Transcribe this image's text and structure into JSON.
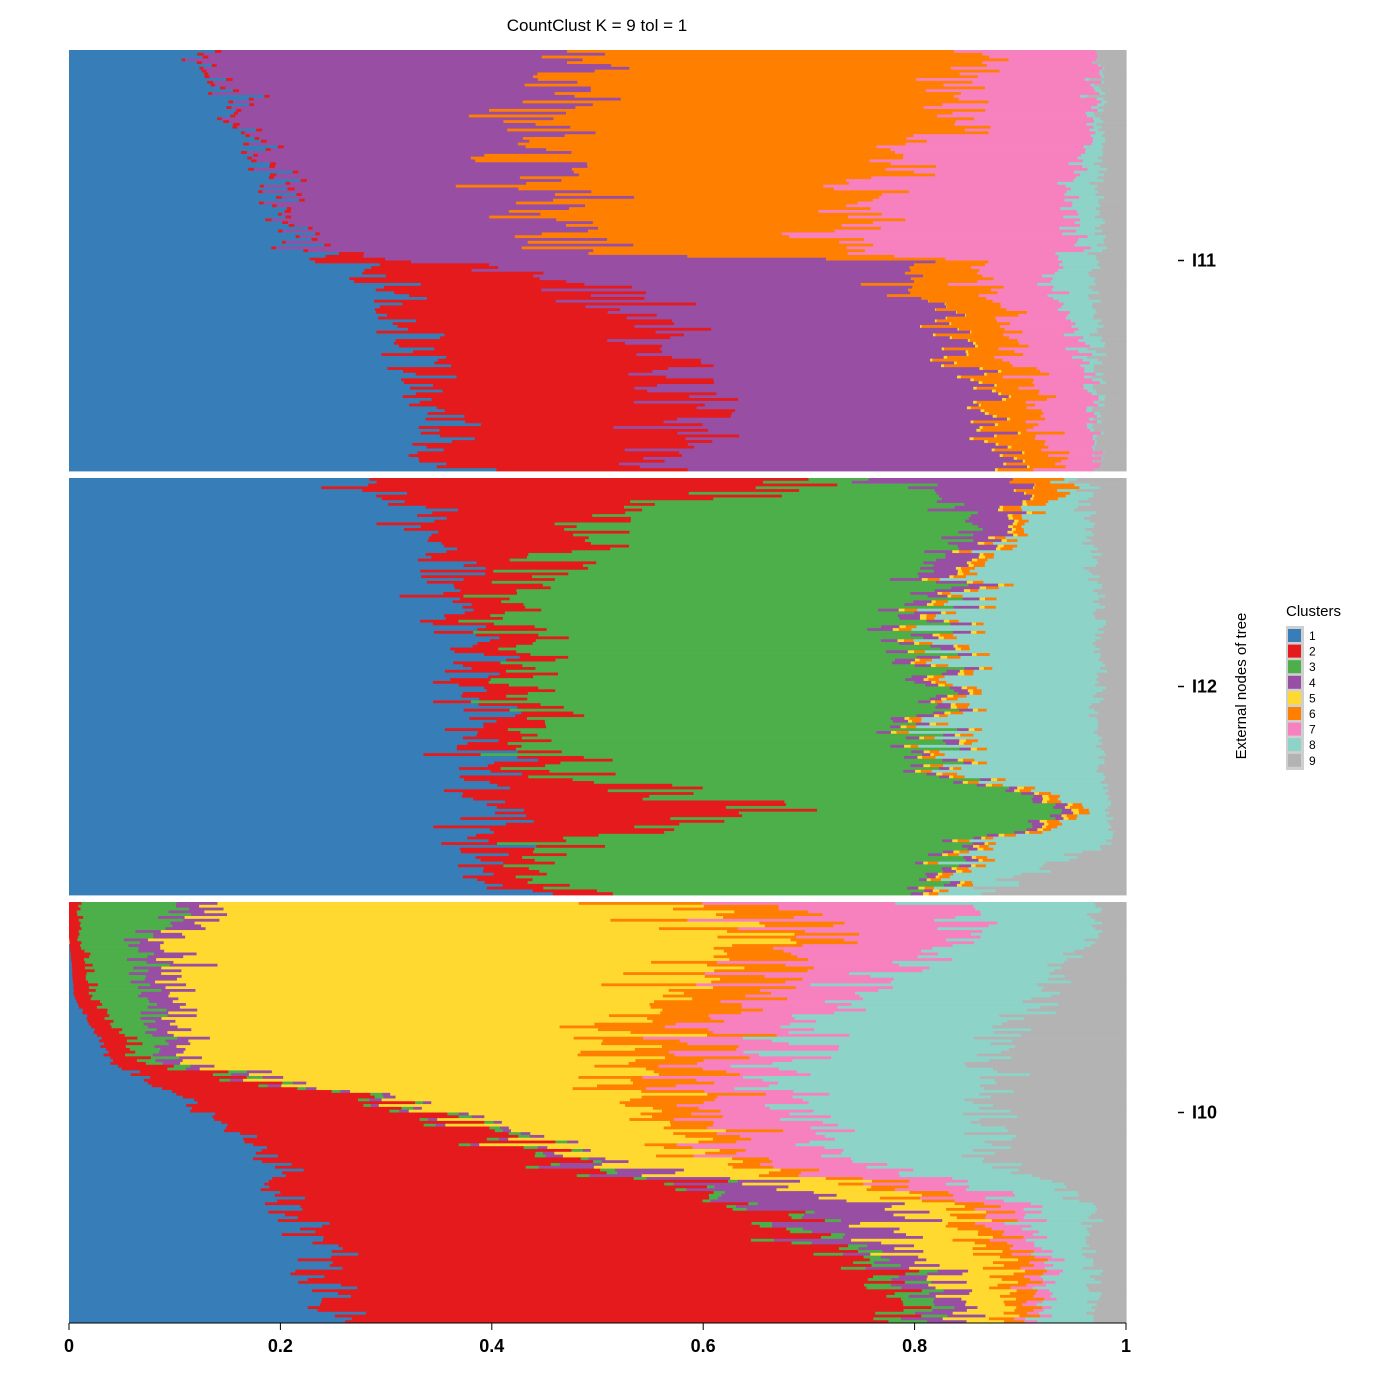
{
  "chart_data": {
    "type": "bar",
    "orientation": "horizontal-stacked",
    "title": "CountClust K =  9 tol =  1",
    "side_axis_label": "External nodes of tree",
    "xlim": [
      0,
      1
    ],
    "x_ticks": [
      "0",
      "0.2",
      "0.4",
      "0.6",
      "0.8",
      "1"
    ],
    "legend": {
      "title": "Clusters",
      "placement": "right",
      "entries": [
        {
          "label": "1",
          "color": "#377EB8"
        },
        {
          "label": "2",
          "color": "#E41A1C"
        },
        {
          "label": "3",
          "color": "#4DAF4A"
        },
        {
          "label": "4",
          "color": "#984EA3"
        },
        {
          "label": "5",
          "color": "#FFD92F"
        },
        {
          "label": "6",
          "color": "#FF7F00"
        },
        {
          "label": "7",
          "color": "#F781BF"
        },
        {
          "label": "8",
          "color": "#8DD3C7"
        },
        {
          "label": "9",
          "color": "#B3B3B3"
        }
      ]
    },
    "groups": [
      {
        "name": "I11",
        "keyframes": [
          {
            "pos": 0.0,
            "values": [
              0.12,
              0.005,
              0.0,
              0.36,
              0.0,
              0.37,
              0.12,
              0.0,
              0.025
            ]
          },
          {
            "pos": 0.2,
            "values": [
              0.17,
              0.005,
              0.0,
              0.27,
              0.0,
              0.38,
              0.14,
              0.01,
              0.025
            ]
          },
          {
            "pos": 0.35,
            "values": [
              0.19,
              0.005,
              0.0,
              0.26,
              0.0,
              0.29,
              0.2,
              0.03,
              0.025
            ]
          },
          {
            "pos": 0.48,
            "values": [
              0.22,
              0.005,
              0.0,
              0.23,
              0.0,
              0.28,
              0.22,
              0.02,
              0.025
            ]
          },
          {
            "pos": 0.5,
            "values": [
              0.26,
              0.08,
              0.0,
              0.44,
              0.0,
              0.07,
              0.08,
              0.04,
              0.03
            ]
          },
          {
            "pos": 0.56,
            "values": [
              0.3,
              0.2,
              0.0,
              0.3,
              0.0,
              0.07,
              0.06,
              0.04,
              0.03
            ]
          },
          {
            "pos": 0.75,
            "values": [
              0.33,
              0.25,
              0.0,
              0.27,
              0.003,
              0.05,
              0.06,
              0.01,
              0.027
            ]
          },
          {
            "pos": 1.0,
            "values": [
              0.36,
              0.22,
              0.0,
              0.31,
              0.003,
              0.04,
              0.04,
              0.0,
              0.027
            ]
          }
        ]
      },
      {
        "name": "I12",
        "keyframes": [
          {
            "pos": 0.0,
            "values": [
              0.26,
              0.45,
              0.06,
              0.13,
              0.0,
              0.05,
              0.0,
              0.01,
              0.04
            ]
          },
          {
            "pos": 0.08,
            "values": [
              0.33,
              0.18,
              0.35,
              0.04,
              0.005,
              0.01,
              0.0,
              0.05,
              0.035
            ]
          },
          {
            "pos": 0.3,
            "values": [
              0.36,
              0.05,
              0.4,
              0.02,
              0.005,
              0.01,
              0.0,
              0.13,
              0.025
            ]
          },
          {
            "pos": 0.7,
            "values": [
              0.39,
              0.05,
              0.37,
              0.01,
              0.005,
              0.01,
              0.0,
              0.14,
              0.025
            ]
          },
          {
            "pos": 0.8,
            "values": [
              0.39,
              0.28,
              0.28,
              0.01,
              0.005,
              0.01,
              0.0,
              0.01,
              0.015
            ]
          },
          {
            "pos": 0.88,
            "values": [
              0.39,
              0.06,
              0.4,
              0.01,
              0.005,
              0.01,
              0.0,
              0.11,
              0.015
            ]
          },
          {
            "pos": 1.0,
            "values": [
              0.41,
              0.05,
              0.33,
              0.01,
              0.005,
              0.01,
              0.0,
              0.03,
              0.155
            ]
          }
        ]
      },
      {
        "name": "I10",
        "keyframes": [
          {
            "pos": 0.0,
            "values": [
              0.0,
              0.01,
              0.1,
              0.03,
              0.39,
              0.09,
              0.21,
              0.14,
              0.03
            ]
          },
          {
            "pos": 0.08,
            "values": [
              0.0,
              0.01,
              0.06,
              0.03,
              0.56,
              0.06,
              0.14,
              0.11,
              0.03
            ]
          },
          {
            "pos": 0.22,
            "values": [
              0.005,
              0.02,
              0.05,
              0.03,
              0.44,
              0.08,
              0.1,
              0.19,
              0.085
            ]
          },
          {
            "pos": 0.38,
            "values": [
              0.04,
              0.03,
              0.02,
              0.02,
              0.39,
              0.08,
              0.08,
              0.2,
              0.14
            ]
          },
          {
            "pos": 0.45,
            "values": [
              0.1,
              0.15,
              0.01,
              0.01,
              0.26,
              0.07,
              0.08,
              0.2,
              0.12
            ]
          },
          {
            "pos": 0.6,
            "values": [
              0.19,
              0.27,
              0.01,
              0.01,
              0.12,
              0.03,
              0.1,
              0.14,
              0.13
            ]
          },
          {
            "pos": 0.72,
            "values": [
              0.2,
              0.44,
              0.01,
              0.13,
              0.06,
              0.03,
              0.04,
              0.06,
              0.03
            ]
          },
          {
            "pos": 0.84,
            "values": [
              0.24,
              0.51,
              0.02,
              0.03,
              0.08,
              0.03,
              0.02,
              0.04,
              0.03
            ]
          },
          {
            "pos": 1.0,
            "values": [
              0.25,
              0.55,
              0.03,
              0.03,
              0.03,
              0.02,
              0.01,
              0.05,
              0.03
            ]
          }
        ]
      }
    ]
  }
}
